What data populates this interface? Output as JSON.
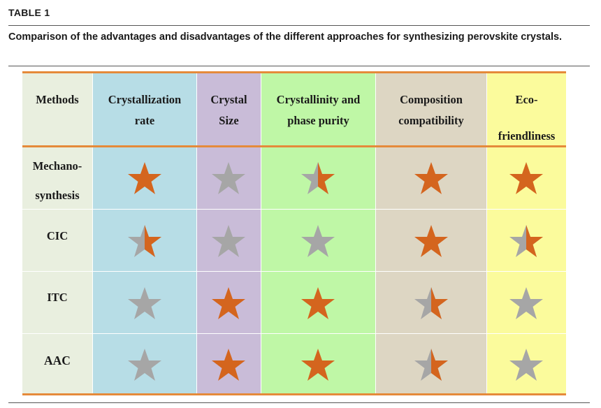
{
  "table_label": "TABLE 1",
  "caption": "Comparison of the advantages and disadvantages of the different approaches for synthesizing perovskite crystals.",
  "colors": {
    "methods": "#e9efdf",
    "crystallization_rate": "#b7dde6",
    "crystal_size": "#c9bcd8",
    "crystallinity": "#bff7a6",
    "composition": "#ddd6c3",
    "eco": "#fbfb9c",
    "star_full": "#d4651e",
    "star_empty": "#a6a6a6",
    "rule_orange": "#e58a3a"
  },
  "headers": {
    "methods": "Methods",
    "crystallization_rate": [
      "Crystallization",
      "rate"
    ],
    "crystal_size": [
      "Crystal",
      "Size"
    ],
    "crystallinity": [
      "Crystallinity and",
      "phase purity"
    ],
    "composition": [
      "Composition",
      "compatibility"
    ],
    "eco": [
      "Eco-",
      "friendliness"
    ]
  },
  "rows": [
    {
      "label": [
        "Mechano-",
        "synthesis"
      ],
      "ratings": [
        "full",
        "empty",
        "half",
        "full",
        "full"
      ]
    },
    {
      "label": [
        "CIC"
      ],
      "ratings": [
        "half",
        "empty",
        "empty",
        "full",
        "half"
      ]
    },
    {
      "label": [
        "ITC"
      ],
      "ratings": [
        "empty",
        "full",
        "full",
        "half",
        "empty"
      ]
    },
    {
      "label": [
        "AAC"
      ],
      "ratings": [
        "empty",
        "full",
        "full",
        "half",
        "empty"
      ]
    }
  ]
}
